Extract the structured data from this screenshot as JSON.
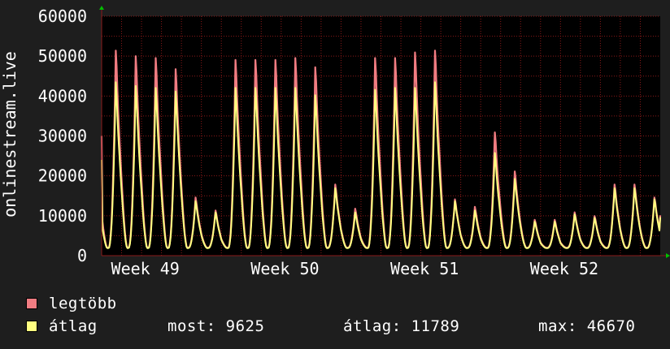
{
  "chart_data": {
    "type": "area",
    "ylabel": "onlinestream.live",
    "ylim": [
      0,
      60000
    ],
    "yticks": [
      0,
      10000,
      20000,
      30000,
      40000,
      50000,
      60000
    ],
    "x_range_days": [
      0,
      28
    ],
    "week_labels": [
      {
        "label": "Week 49",
        "day": 1.7
      },
      {
        "label": "Week 50",
        "day": 8.7
      },
      {
        "label": "Week 51",
        "day": 15.7
      },
      {
        "label": "Week 52",
        "day": 22.7
      }
    ],
    "grid": true,
    "series": [
      {
        "name": "legtöbb",
        "color": "#f07c82",
        "daily_peaks": [
          55000,
          53500,
          53000,
          50000,
          15500,
          12000,
          52500,
          52500,
          52500,
          53000,
          50500,
          19000,
          12500,
          53000,
          53000,
          54500,
          55000,
          15000,
          13000,
          33000,
          22500,
          9500,
          9500,
          11500,
          10500,
          19000,
          19000,
          15500
        ]
      },
      {
        "name": "átlag",
        "color": "#ffff80",
        "daily_peaks": [
          46500,
          45500,
          45000,
          44000,
          14500,
          11500,
          45000,
          45000,
          45000,
          45000,
          43000,
          18000,
          11500,
          44500,
          45000,
          45000,
          46500,
          14500,
          12000,
          27500,
          20500,
          9000,
          9000,
          11000,
          10000,
          18000,
          18000,
          15000
        ]
      }
    ],
    "start_value": 30000,
    "end_value": 9625,
    "baseline": 2000
  },
  "legend": {
    "max_label": "legtöbb",
    "avg_label": "átlag",
    "max_color": "#f07c82",
    "avg_color": "#ffff80"
  },
  "stats": {
    "now": "most: 9625",
    "average": "átlag: 11789",
    "max": "max: 46670"
  },
  "colors": {
    "background": "#1e1e1e",
    "plot_background": "#000000",
    "grid": "#8a1a1a",
    "text": "#ffffff",
    "axis_arrow": "#00c000"
  }
}
